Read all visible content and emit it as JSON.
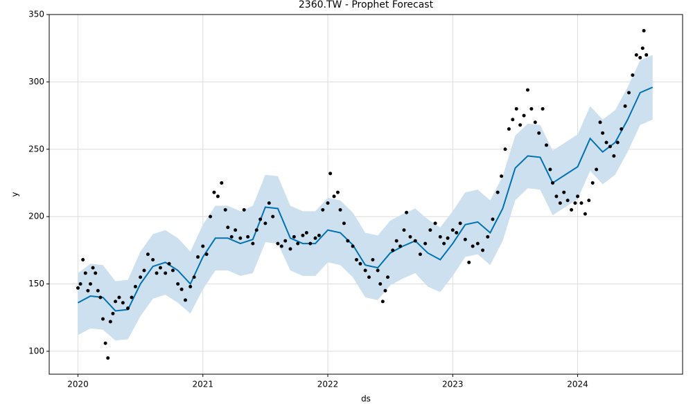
{
  "chart_data": {
    "type": "line",
    "title": "2360.TW - Prophet Forecast",
    "x_label": "ds",
    "y_label": "y",
    "xlim": [
      2019.77,
      2024.84
    ],
    "ylim": [
      83,
      350
    ],
    "xticks": [
      2020,
      2021,
      2022,
      2023,
      2024
    ],
    "yticks": [
      100,
      150,
      200,
      250,
      300,
      350
    ],
    "grid": true,
    "series": [
      {
        "type": "band",
        "color": "#cce0ef",
        "x": [
          2020.0,
          2020.1,
          2020.2,
          2020.3,
          2020.4,
          2020.5,
          2020.6,
          2020.7,
          2020.8,
          2020.9,
          2021.0,
          2021.1,
          2021.2,
          2021.3,
          2021.4,
          2021.5,
          2021.6,
          2021.7,
          2021.8,
          2021.9,
          2022.0,
          2022.1,
          2022.2,
          2022.3,
          2022.4,
          2022.5,
          2022.6,
          2022.7,
          2022.8,
          2022.9,
          2023.0,
          2023.1,
          2023.2,
          2023.3,
          2023.4,
          2023.5,
          2023.6,
          2023.7,
          2023.8,
          2023.9,
          2024.0,
          2024.1,
          2024.2,
          2024.3,
          2024.4,
          2024.5,
          2024.6
        ],
        "lower": [
          112,
          117,
          116,
          108,
          109,
          126,
          139,
          142,
          136,
          128,
          146,
          160,
          160,
          156,
          158,
          181,
          180,
          160,
          156,
          156,
          166,
          164,
          155,
          140,
          138,
          149,
          154,
          158,
          148,
          144,
          156,
          170,
          172,
          164,
          182,
          212,
          221,
          220,
          201,
          207,
          213,
          234,
          224,
          231,
          248,
          268,
          272
        ],
        "upper": [
          158,
          165,
          164,
          152,
          153,
          174,
          187,
          190,
          184,
          174,
          194,
          208,
          208,
          204,
          208,
          231,
          230,
          208,
          204,
          204,
          214,
          212,
          203,
          188,
          186,
          197,
          202,
          206,
          198,
          192,
          204,
          218,
          220,
          212,
          230,
          260,
          269,
          268,
          249,
          255,
          261,
          282,
          272,
          279,
          296,
          316,
          320
        ]
      },
      {
        "type": "line",
        "color": "#0072b2",
        "x": [
          2020.0,
          2020.1,
          2020.2,
          2020.3,
          2020.4,
          2020.5,
          2020.6,
          2020.7,
          2020.8,
          2020.9,
          2021.0,
          2021.1,
          2021.2,
          2021.3,
          2021.4,
          2021.5,
          2021.6,
          2021.7,
          2021.8,
          2021.9,
          2022.0,
          2022.1,
          2022.2,
          2022.3,
          2022.4,
          2022.5,
          2022.6,
          2022.7,
          2022.8,
          2022.9,
          2023.0,
          2023.1,
          2023.2,
          2023.3,
          2023.4,
          2023.5,
          2023.6,
          2023.7,
          2023.8,
          2023.9,
          2024.0,
          2024.1,
          2024.2,
          2024.3,
          2024.4,
          2024.5,
          2024.6
        ],
        "values": [
          136,
          141,
          140,
          130,
          131,
          150,
          163,
          166,
          160,
          150,
          170,
          184,
          184,
          180,
          183,
          207,
          206,
          184,
          180,
          180,
          190,
          188,
          179,
          164,
          162,
          173,
          178,
          182,
          173,
          168,
          180,
          194,
          196,
          188,
          206,
          236,
          245,
          244,
          225,
          231,
          237,
          258,
          248,
          255,
          272,
          292,
          296
        ]
      },
      {
        "type": "scatter",
        "color": "#000000",
        "x": [
          2020.0,
          2020.02,
          2020.04,
          2020.06,
          2020.08,
          2020.1,
          2020.12,
          2020.14,
          2020.16,
          2020.18,
          2020.2,
          2020.22,
          2020.24,
          2020.26,
          2020.28,
          2020.3,
          2020.33,
          2020.36,
          2020.4,
          2020.43,
          2020.46,
          2020.5,
          2020.53,
          2020.56,
          2020.6,
          2020.63,
          2020.66,
          2020.7,
          2020.73,
          2020.76,
          2020.8,
          2020.83,
          2020.86,
          2020.9,
          2020.93,
          2020.96,
          2021.0,
          2021.03,
          2021.06,
          2021.09,
          2021.12,
          2021.15,
          2021.18,
          2021.2,
          2021.23,
          2021.26,
          2021.3,
          2021.33,
          2021.36,
          2021.4,
          2021.43,
          2021.46,
          2021.5,
          2021.53,
          2021.56,
          2021.6,
          2021.63,
          2021.66,
          2021.7,
          2021.73,
          2021.76,
          2021.8,
          2021.83,
          2021.86,
          2021.9,
          2021.93,
          2021.96,
          2022.0,
          2022.02,
          2022.05,
          2022.08,
          2022.1,
          2022.13,
          2022.16,
          2022.2,
          2022.23,
          2022.26,
          2022.3,
          2022.33,
          2022.36,
          2022.4,
          2022.42,
          2022.44,
          2022.46,
          2022.48,
          2022.52,
          2022.55,
          2022.58,
          2022.61,
          2022.63,
          2022.66,
          2022.7,
          2022.74,
          2022.78,
          2022.82,
          2022.86,
          2022.9,
          2022.93,
          2022.96,
          2023.0,
          2023.03,
          2023.06,
          2023.1,
          2023.13,
          2023.16,
          2023.2,
          2023.24,
          2023.28,
          2023.32,
          2023.36,
          2023.39,
          2023.42,
          2023.45,
          2023.48,
          2023.51,
          2023.54,
          2023.57,
          2023.6,
          2023.63,
          2023.66,
          2023.69,
          2023.72,
          2023.75,
          2023.78,
          2023.8,
          2023.83,
          2023.86,
          2023.89,
          2023.92,
          2023.95,
          2023.98,
          2024.0,
          2024.03,
          2024.06,
          2024.09,
          2024.12,
          2024.15,
          2024.18,
          2024.2,
          2024.23,
          2024.26,
          2024.29,
          2024.32,
          2024.35,
          2024.38,
          2024.41,
          2024.44,
          2024.47,
          2024.5,
          2024.52,
          2024.53,
          2024.55
        ],
        "values": [
          147,
          150,
          168,
          158,
          145,
          150,
          162,
          158,
          145,
          140,
          124,
          106,
          95,
          122,
          128,
          137,
          140,
          136,
          132,
          140,
          148,
          155,
          160,
          172,
          168,
          158,
          162,
          158,
          165,
          160,
          150,
          146,
          138,
          148,
          155,
          170,
          178,
          172,
          200,
          218,
          215,
          225,
          205,
          192,
          185,
          190,
          184,
          205,
          185,
          180,
          190,
          198,
          195,
          210,
          200,
          180,
          178,
          182,
          176,
          185,
          180,
          186,
          188,
          180,
          184,
          186,
          205,
          210,
          232,
          215,
          218,
          205,
          195,
          182,
          178,
          168,
          165,
          160,
          155,
          168,
          160,
          150,
          137,
          145,
          155,
          175,
          182,
          178,
          190,
          203,
          185,
          182,
          172,
          180,
          190,
          195,
          185,
          180,
          184,
          190,
          188,
          195,
          183,
          166,
          178,
          180,
          175,
          185,
          198,
          218,
          230,
          250,
          265,
          272,
          280,
          268,
          275,
          294,
          280,
          270,
          262,
          280,
          253,
          235,
          225,
          215,
          210,
          218,
          212,
          205,
          210,
          215,
          210,
          202,
          212,
          225,
          235,
          270,
          262,
          255,
          252,
          245,
          255,
          265,
          282,
          292,
          305,
          320,
          318,
          325,
          338,
          320
        ]
      }
    ]
  }
}
